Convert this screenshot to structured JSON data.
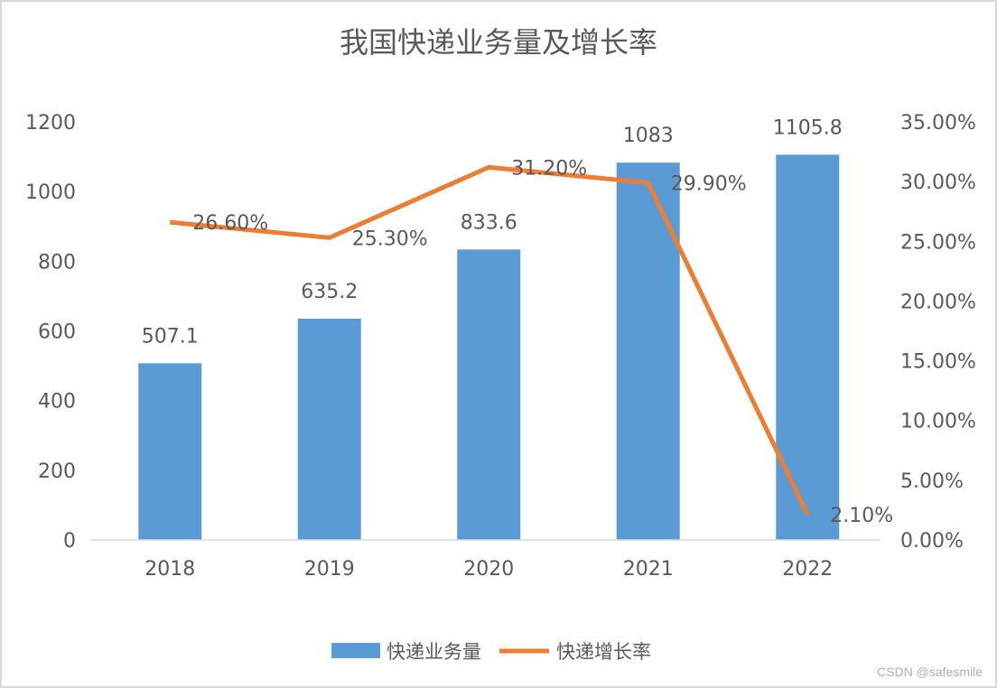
{
  "chart_data": {
    "type": "bar+line",
    "title": "我国快递业务量及增长率",
    "categories": [
      "2018",
      "2019",
      "2020",
      "2021",
      "2022"
    ],
    "series": [
      {
        "name": "快递业务量",
        "type": "bar",
        "axis": "left",
        "values": [
          507.1,
          635.2,
          833.6,
          1083,
          1105.8
        ],
        "labels": [
          "507.1",
          "635.2",
          "833.6",
          "1083",
          "1105.8"
        ],
        "color": "#5b9bd5"
      },
      {
        "name": "快递增长率",
        "type": "line",
        "axis": "right",
        "values": [
          0.266,
          0.253,
          0.312,
          0.299,
          0.021
        ],
        "labels": [
          "26.60%",
          "25.30%",
          "31.20%",
          "29.90%",
          "2.10%"
        ],
        "color": "#ed7d31"
      }
    ],
    "left_axis": {
      "ylim": [
        0,
        1200
      ],
      "ticks": [
        "0",
        "200",
        "400",
        "600",
        "800",
        "1000",
        "1200"
      ]
    },
    "right_axis": {
      "ylim": [
        0,
        0.35
      ],
      "ticks": [
        "0.00%",
        "5.00%",
        "10.00%",
        "15.00%",
        "20.00%",
        "25.00%",
        "30.00%",
        "35.00%"
      ]
    },
    "grid": false,
    "legend": "bottom"
  },
  "watermark": "CSDN @safesmile"
}
